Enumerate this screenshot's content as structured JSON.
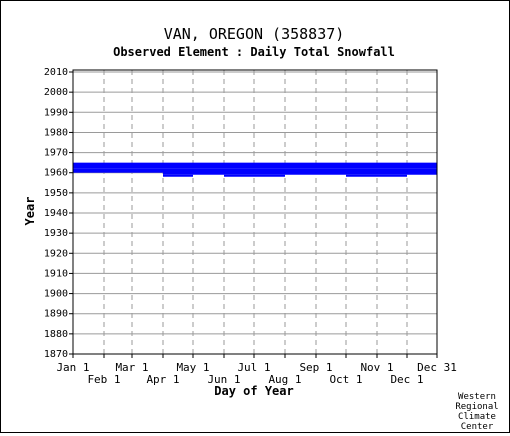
{
  "chart_data": {
    "type": "area",
    "title": "VAN, OREGON   (358837)",
    "subtitle": "Observed Element : Daily Total Snowfall",
    "xlabel": "Day of Year",
    "ylabel": "Year",
    "ylim": [
      1870,
      2011
    ],
    "xlim": [
      1,
      365
    ],
    "yticks": [
      1870,
      1880,
      1890,
      1900,
      1910,
      1920,
      1930,
      1940,
      1950,
      1960,
      1970,
      1980,
      1990,
      2000,
      2010
    ],
    "xticks_top": [
      {
        "label": "Jan 1",
        "day": 1
      },
      {
        "label": "Mar 1",
        "day": 60
      },
      {
        "label": "May 1",
        "day": 121
      },
      {
        "label": "Jul 1",
        "day": 182
      },
      {
        "label": "Sep 1",
        "day": 244
      },
      {
        "label": "Nov 1",
        "day": 305
      },
      {
        "label": "Dec 31",
        "day": 365
      }
    ],
    "xticks_bottom": [
      {
        "label": "Feb 1",
        "day": 32
      },
      {
        "label": "Apr 1",
        "day": 91
      },
      {
        "label": "Jun 1",
        "day": 152
      },
      {
        "label": "Aug 1",
        "day": 213
      },
      {
        "label": "Oct 1",
        "day": 274
      },
      {
        "label": "Dec 1",
        "day": 335
      }
    ],
    "grid": true,
    "series_color": "#0000ff",
    "coverage": [
      {
        "day_start": 1,
        "day_end": 365,
        "year_start": 1962,
        "year_end": 1965
      },
      {
        "day_start": 91,
        "day_end": 365,
        "year_start": 1959,
        "year_end": 1962
      },
      {
        "day_start": 91,
        "day_end": 121,
        "year_start": 1958,
        "year_end": 1959
      },
      {
        "day_start": 152,
        "day_end": 213,
        "year_start": 1958,
        "year_end": 1959
      },
      {
        "day_start": 274,
        "day_end": 335,
        "year_start": 1958,
        "year_end": 1959
      },
      {
        "day_start": 1,
        "day_end": 91,
        "year_start": 1960,
        "year_end": 1962
      }
    ]
  },
  "credit": [
    "Western",
    "Regional",
    "Climate",
    "Center"
  ]
}
